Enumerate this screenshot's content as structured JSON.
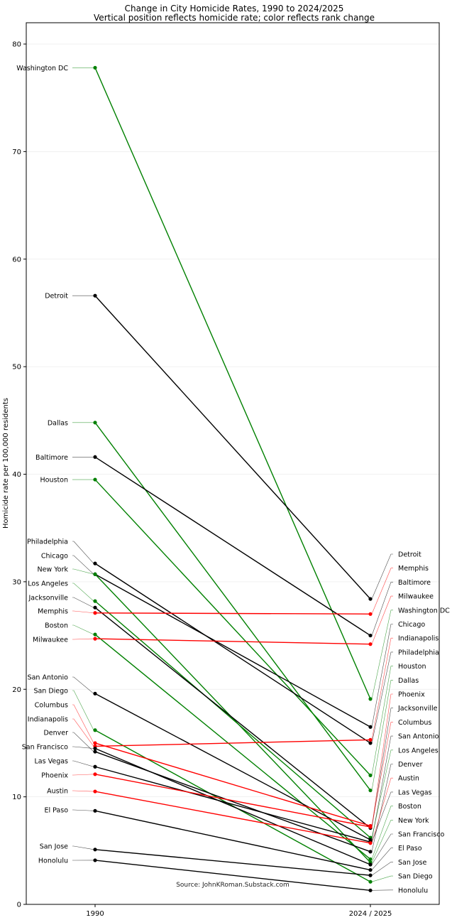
{
  "chart_data": {
    "type": "line",
    "title": "Change in City Homicide Rates, 1990 to 2024/2025",
    "subtitle": "Vertical position reflects homicide rate; color reflects rank change",
    "ylabel": "Homicide rate per 100,000 residents",
    "xlabel": "",
    "categories": [
      "1990",
      "2024 / 2025"
    ],
    "ylim": [
      0,
      82
    ],
    "yticks": [
      0,
      10,
      20,
      30,
      40,
      50,
      60,
      70,
      80
    ],
    "grid": true,
    "source": "Source: JohnKRoman.Substack.com",
    "colors": {
      "improved": "#008000",
      "worsened": "#ff0000",
      "unchanged": "#000000"
    },
    "series": [
      {
        "name": "Washington DC",
        "values": [
          77.8,
          19.1
        ],
        "change": "improved"
      },
      {
        "name": "Detroit",
        "values": [
          56.6,
          28.4
        ],
        "change": "unchanged"
      },
      {
        "name": "Dallas",
        "values": [
          44.8,
          10.6
        ],
        "change": "improved"
      },
      {
        "name": "Baltimore",
        "values": [
          41.6,
          25.0
        ],
        "change": "unchanged"
      },
      {
        "name": "Houston",
        "values": [
          39.5,
          12.0
        ],
        "change": "improved"
      },
      {
        "name": "Philadelphia",
        "values": [
          31.7,
          15.0
        ],
        "change": "unchanged"
      },
      {
        "name": "Chicago",
        "values": [
          30.7,
          16.5
        ],
        "change": "unchanged"
      },
      {
        "name": "New York",
        "values": [
          30.7,
          3.9
        ],
        "change": "improved"
      },
      {
        "name": "Los Angeles",
        "values": [
          28.2,
          6.2
        ],
        "change": "improved"
      },
      {
        "name": "Jacksonville",
        "values": [
          27.6,
          7.1
        ],
        "change": "unchanged"
      },
      {
        "name": "Memphis",
        "values": [
          27.1,
          27.0
        ],
        "change": "worsened"
      },
      {
        "name": "Boston",
        "values": [
          25.1,
          4.2
        ],
        "change": "improved"
      },
      {
        "name": "Milwaukee",
        "values": [
          24.7,
          24.2
        ],
        "change": "worsened"
      },
      {
        "name": "San Antonio",
        "values": [
          19.6,
          6.0
        ],
        "change": "unchanged"
      },
      {
        "name": "San Diego",
        "values": [
          16.2,
          2.1
        ],
        "change": "improved"
      },
      {
        "name": "Columbus",
        "values": [
          15.0,
          7.3
        ],
        "change": "worsened"
      },
      {
        "name": "Indianapolis",
        "values": [
          14.7,
          15.3
        ],
        "change": "worsened"
      },
      {
        "name": "Denver",
        "values": [
          14.2,
          4.9
        ],
        "change": "unchanged"
      },
      {
        "name": "San Francisco",
        "values": [
          14.5,
          3.7
        ],
        "change": "unchanged"
      },
      {
        "name": "Las Vegas",
        "values": [
          12.8,
          5.8
        ],
        "change": "unchanged"
      },
      {
        "name": "Phoenix",
        "values": [
          12.1,
          7.2
        ],
        "change": "worsened"
      },
      {
        "name": "Austin",
        "values": [
          10.5,
          5.7
        ],
        "change": "worsened"
      },
      {
        "name": "El Paso",
        "values": [
          8.7,
          3.2
        ],
        "change": "unchanged"
      },
      {
        "name": "San Jose",
        "values": [
          5.1,
          2.7
        ],
        "change": "unchanged"
      },
      {
        "name": "Honolulu",
        "values": [
          4.1,
          1.3
        ],
        "change": "unchanged"
      }
    ],
    "left_label_order": [
      "Washington DC",
      "Detroit",
      "Dallas",
      "Baltimore",
      "Houston",
      "Philadelphia",
      "Chicago",
      "New York",
      "Los Angeles",
      "Jacksonville",
      "Memphis",
      "Boston",
      "Milwaukee",
      "San Antonio",
      "San Diego",
      "Columbus",
      "Indianapolis",
      "Denver",
      "San Francisco",
      "Las Vegas",
      "Phoenix",
      "Austin",
      "El Paso",
      "San Jose",
      "Honolulu"
    ],
    "right_label_order": [
      "Detroit",
      "Memphis",
      "Baltimore",
      "Milwaukee",
      "Washington DC",
      "Chicago",
      "Indianapolis",
      "Philadelphia",
      "Houston",
      "Dallas",
      "Phoenix",
      "Jacksonville",
      "Columbus",
      "San Antonio",
      "Los Angeles",
      "Denver",
      "Austin",
      "Las Vegas",
      "Boston",
      "New York",
      "San Francisco",
      "El Paso",
      "San Jose",
      "San Diego",
      "Honolulu"
    ]
  }
}
